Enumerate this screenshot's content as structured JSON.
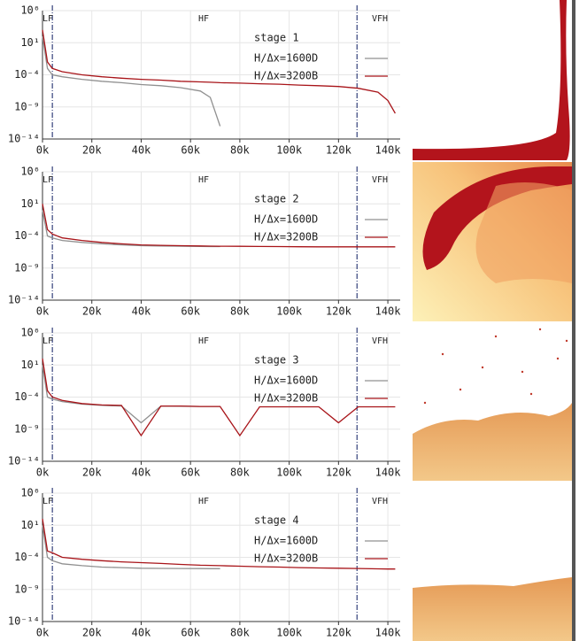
{
  "chart_data": [
    {
      "type": "line",
      "log_y": true,
      "grid": true,
      "legend_title": "stage 1",
      "annotations": [
        "LF",
        "HF",
        "VFH"
      ],
      "vlines": [
        4000,
        127500
      ],
      "xlim": [
        0,
        145000
      ],
      "ylim": [
        1e-14,
        1000000.0
      ],
      "xticks": [
        {
          "value": 0,
          "label": "0k"
        },
        {
          "value": 20000,
          "label": "20k"
        },
        {
          "value": 40000,
          "label": "40k"
        },
        {
          "value": 60000,
          "label": "60k"
        },
        {
          "value": 80000,
          "label": "80k"
        },
        {
          "value": 100000,
          "label": "100k"
        },
        {
          "value": 120000,
          "label": "120k"
        },
        {
          "value": 140000,
          "label": "140k"
        }
      ],
      "yticks": [
        {
          "value": 1e-14,
          "label": "10⁻¹⁴"
        },
        {
          "value": 1e-09,
          "label": "10⁻⁹"
        },
        {
          "value": 0.0001,
          "label": "10⁻⁴"
        },
        {
          "value": 10,
          "label": "10¹"
        },
        {
          "value": 1000000.0,
          "label": "10⁶"
        }
      ],
      "x": [
        0,
        2000,
        4000,
        8000,
        16000,
        24000,
        32000,
        40000,
        48000,
        56000,
        64000,
        68000,
        72000,
        80000,
        88000,
        96000,
        104000,
        112000,
        120000,
        128000,
        136000,
        140000,
        143000
      ],
      "series": [
        {
          "name": "H/Δx=1600D",
          "color": "#909090",
          "values": [
            100.0,
            0.001,
            0.0001,
            5e-05,
            2e-05,
            1e-05,
            6e-06,
            3e-06,
            2e-06,
            1e-06,
            3e-07,
            3e-08,
            1e-12,
            null,
            null,
            null,
            null,
            null,
            null,
            null,
            null,
            null,
            null
          ]
        },
        {
          "name": "H/Δx=3200B",
          "color": "#a81419",
          "values": [
            1000.0,
            0.01,
            0.001,
            0.0003,
            0.0001,
            5e-05,
            3e-05,
            2e-05,
            1.5e-05,
            1e-05,
            8e-06,
            7e-06,
            6e-06,
            5e-06,
            4e-06,
            3.5e-06,
            2.5e-06,
            2e-06,
            1.5e-06,
            8e-07,
            2e-07,
            1e-08,
            1e-10
          ]
        }
      ]
    },
    {
      "type": "line",
      "log_y": true,
      "grid": true,
      "legend_title": "stage 2",
      "annotations": [
        "LF",
        "HF",
        "VFH"
      ],
      "vlines": [
        4000,
        127500
      ],
      "xlim": [
        0,
        145000
      ],
      "ylim": [
        1e-14,
        1000000.0
      ],
      "xticks": [
        {
          "value": 0,
          "label": "0k"
        },
        {
          "value": 20000,
          "label": "20k"
        },
        {
          "value": 40000,
          "label": "40k"
        },
        {
          "value": 60000,
          "label": "60k"
        },
        {
          "value": 80000,
          "label": "80k"
        },
        {
          "value": 100000,
          "label": "100k"
        },
        {
          "value": 120000,
          "label": "120k"
        },
        {
          "value": 140000,
          "label": "140k"
        }
      ],
      "yticks": [
        {
          "value": 1e-14,
          "label": "10⁻¹⁴"
        },
        {
          "value": 1e-09,
          "label": "10⁻⁹"
        },
        {
          "value": 0.0001,
          "label": "10⁻⁴"
        },
        {
          "value": 10,
          "label": "10¹"
        },
        {
          "value": 1000000.0,
          "label": "10⁶"
        }
      ],
      "x": [
        0,
        2000,
        4000,
        8000,
        16000,
        24000,
        32000,
        40000,
        48000,
        56000,
        64000,
        68000,
        72000,
        80000,
        88000,
        96000,
        104000,
        112000,
        120000,
        128000,
        136000,
        140000,
        143000
      ],
      "series": [
        {
          "name": "H/Δx=1600D",
          "color": "#909090",
          "values": [
            1,
            0.0001,
            5e-05,
            2e-05,
            1e-05,
            6e-06,
            4e-06,
            3e-06,
            2.8e-06,
            2.5e-06,
            2.3e-06,
            2.2e-06,
            2.2e-06,
            null,
            null,
            null,
            null,
            null,
            null,
            null,
            null,
            null,
            null
          ]
        },
        {
          "name": "H/Δx=3200B",
          "color": "#a81419",
          "values": [
            10,
            0.001,
            0.0002,
            5e-05,
            2e-05,
            1e-05,
            6e-06,
            4e-06,
            3.5e-06,
            3e-06,
            2.8e-06,
            2.6e-06,
            2.5e-06,
            2.4e-06,
            2.3e-06,
            2.2e-06,
            2.1e-06,
            2e-06,
            2e-06,
            2e-06,
            2e-06,
            2e-06,
            2e-06
          ]
        }
      ]
    },
    {
      "type": "line",
      "log_y": true,
      "grid": true,
      "legend_title": "stage 3",
      "annotations": [
        "LF",
        "HF",
        "VFH"
      ],
      "vlines": [
        4000,
        127500
      ],
      "xlim": [
        0,
        145000
      ],
      "ylim": [
        1e-14,
        1000000.0
      ],
      "xticks": [
        {
          "value": 0,
          "label": "0k"
        },
        {
          "value": 20000,
          "label": "20k"
        },
        {
          "value": 40000,
          "label": "40k"
        },
        {
          "value": 60000,
          "label": "60k"
        },
        {
          "value": 80000,
          "label": "80k"
        },
        {
          "value": 100000,
          "label": "100k"
        },
        {
          "value": 120000,
          "label": "120k"
        },
        {
          "value": 140000,
          "label": "140k"
        }
      ],
      "yticks": [
        {
          "value": 1e-14,
          "label": "10⁻¹⁴"
        },
        {
          "value": 1e-09,
          "label": "10⁻⁹"
        },
        {
          "value": 0.0001,
          "label": "10⁻⁴"
        },
        {
          "value": 10,
          "label": "10¹"
        },
        {
          "value": 1000000.0,
          "label": "10⁶"
        }
      ],
      "x": [
        0,
        2000,
        4000,
        8000,
        16000,
        24000,
        32000,
        40000,
        48000,
        56000,
        64000,
        68000,
        72000,
        80000,
        88000,
        96000,
        104000,
        112000,
        120000,
        128000,
        136000,
        140000,
        143000
      ],
      "series": [
        {
          "name": "H/Δx=1600D",
          "color": "#909090",
          "values": [
            10,
            0.0001,
            5e-05,
            2e-05,
            8e-06,
            5e-06,
            4e-06,
            1e-08,
            4e-06,
            3.8e-06,
            3.5e-06,
            3.5e-06,
            3.5e-06,
            null,
            null,
            null,
            null,
            null,
            null,
            null,
            null,
            null,
            null
          ]
        },
        {
          "name": "H/Δx=3200B",
          "color": "#a81419",
          "values": [
            100.0,
            0.001,
            0.0001,
            3e-05,
            1e-05,
            6e-06,
            5e-06,
            1e-10,
            4e-06,
            4e-06,
            3.5e-06,
            3.5e-06,
            3.5e-06,
            1e-10,
            3e-06,
            3e-06,
            3e-06,
            3e-06,
            1e-08,
            3e-06,
            3e-06,
            3e-06,
            3e-06
          ]
        }
      ]
    },
    {
      "type": "line",
      "log_y": true,
      "grid": true,
      "legend_title": "stage 4",
      "annotations": [
        "LF",
        "HF",
        "VFH"
      ],
      "vlines": [
        4000,
        127500
      ],
      "xlim": [
        0,
        145000
      ],
      "ylim": [
        1e-14,
        1000000.0
      ],
      "xticks": [
        {
          "value": 0,
          "label": "0k"
        },
        {
          "value": 20000,
          "label": "20k"
        },
        {
          "value": 40000,
          "label": "40k"
        },
        {
          "value": 60000,
          "label": "60k"
        },
        {
          "value": 80000,
          "label": "80k"
        },
        {
          "value": 100000,
          "label": "100k"
        },
        {
          "value": 120000,
          "label": "120k"
        },
        {
          "value": 140000,
          "label": "140k"
        }
      ],
      "yticks": [
        {
          "value": 1e-14,
          "label": "10⁻¹⁴"
        },
        {
          "value": 1e-09,
          "label": "10⁻⁹"
        },
        {
          "value": 0.0001,
          "label": "10⁻⁴"
        },
        {
          "value": 10,
          "label": "10¹"
        },
        {
          "value": 1000000.0,
          "label": "10⁶"
        }
      ],
      "x": [
        0,
        2000,
        4000,
        8000,
        16000,
        24000,
        32000,
        40000,
        48000,
        56000,
        64000,
        68000,
        72000,
        80000,
        88000,
        96000,
        104000,
        112000,
        120000,
        128000,
        136000,
        140000,
        143000
      ],
      "series": [
        {
          "name": "H/Δx=1600D",
          "color": "#909090",
          "values": [
            10,
            0.0001,
            3e-05,
            1e-05,
            5e-06,
            3e-06,
            2.5e-06,
            2e-06,
            1.9e-06,
            1.8e-06,
            1.75e-06,
            1.7e-06,
            1.7e-06,
            null,
            null,
            null,
            null,
            null,
            null,
            null,
            null,
            null,
            null
          ]
        },
        {
          "name": "H/Δx=3200B",
          "color": "#a81419",
          "values": [
            100.0,
            0.001,
            0.0005,
            0.0001,
            5e-05,
            3e-05,
            2e-05,
            1.5e-05,
            1.1e-05,
            8e-06,
            6e-06,
            5.5e-06,
            5e-06,
            4.2e-06,
            3.5e-06,
            3e-06,
            2.5e-06,
            2.2e-06,
            2e-06,
            1.8e-06,
            1.6e-06,
            1.5e-06,
            1.5e-06
          ]
        }
      ]
    }
  ]
}
